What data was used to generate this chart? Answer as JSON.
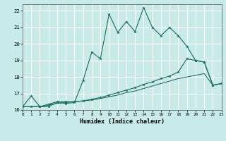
{
  "xlabel": "Humidex (Indice chaleur)",
  "xlim": [
    0,
    23
  ],
  "ylim": [
    16,
    22.4
  ],
  "yticks": [
    16,
    17,
    18,
    19,
    20,
    21,
    22
  ],
  "xticks": [
    0,
    1,
    2,
    3,
    4,
    5,
    6,
    7,
    8,
    9,
    10,
    11,
    12,
    13,
    14,
    15,
    16,
    17,
    18,
    19,
    20,
    21,
    22,
    23
  ],
  "bg_color": "#c8eae8",
  "grid_color": "#ffffff",
  "line_color": "#1a6b5a",
  "line1_x": [
    0,
    1,
    2,
    3,
    4,
    5,
    6,
    7,
    8,
    9,
    10,
    11,
    12,
    13,
    14,
    15,
    16,
    17,
    18,
    19,
    20,
    21,
    22,
    23
  ],
  "line1_y": [
    16.2,
    16.85,
    16.2,
    16.2,
    16.45,
    16.4,
    16.45,
    17.8,
    19.5,
    19.1,
    21.8,
    20.7,
    21.35,
    20.75,
    22.2,
    21.0,
    20.5,
    21.0,
    20.5,
    19.85,
    19.0,
    18.9,
    17.5,
    17.6
  ],
  "line2_x": [
    0,
    1,
    2,
    3,
    4,
    5,
    6,
    7,
    8,
    9,
    10,
    11,
    12,
    13,
    14,
    15,
    16,
    17,
    18,
    19,
    20,
    21,
    22,
    23
  ],
  "line2_y": [
    16.2,
    16.2,
    16.2,
    16.35,
    16.5,
    16.5,
    16.5,
    16.55,
    16.65,
    16.75,
    16.9,
    17.05,
    17.2,
    17.35,
    17.55,
    17.7,
    17.9,
    18.05,
    18.3,
    19.1,
    19.0,
    18.9,
    17.5,
    17.6
  ],
  "line3_x": [
    0,
    1,
    2,
    3,
    4,
    5,
    6,
    7,
    8,
    9,
    10,
    11,
    12,
    13,
    14,
    15,
    16,
    17,
    18,
    19,
    20,
    21,
    22,
    23
  ],
  "line3_y": [
    16.2,
    16.2,
    16.2,
    16.3,
    16.4,
    16.45,
    16.5,
    16.55,
    16.6,
    16.7,
    16.8,
    16.9,
    17.05,
    17.15,
    17.3,
    17.45,
    17.6,
    17.75,
    17.9,
    18.0,
    18.1,
    18.2,
    17.5,
    17.6
  ]
}
